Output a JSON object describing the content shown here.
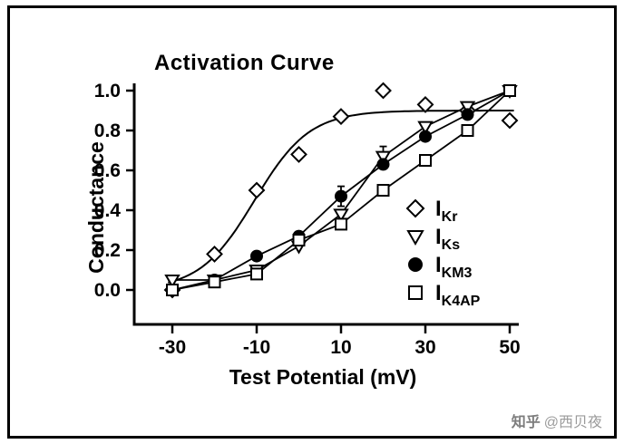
{
  "figure": {
    "watermark_brand": "知乎",
    "watermark_user": "@西贝夜"
  },
  "chart_data": {
    "type": "scatter",
    "title": "Activation Curve",
    "xlabel": "Test Potential (mV)",
    "ylabel": "Conductance",
    "xlim": [
      -30,
      50
    ],
    "ylim": [
      0.0,
      1.0
    ],
    "xticks": [
      -30,
      -10,
      10,
      30,
      50
    ],
    "yticks": [
      0.0,
      0.2,
      0.4,
      0.6,
      0.8,
      1.0
    ],
    "grid": false,
    "legend_position": "inside-right",
    "x": [
      -30,
      -20,
      -10,
      0,
      10,
      20,
      30,
      40,
      50
    ],
    "series": [
      {
        "id": "IKr",
        "label_base": "I",
        "label_sub": "Kr",
        "marker": "diamond",
        "fill": "open",
        "line": "fit",
        "values": [
          0.0,
          0.18,
          0.5,
          0.68,
          0.87,
          1.0,
          0.93,
          0.9,
          0.85
        ],
        "errors": [
          0,
          0,
          0,
          0,
          0,
          0,
          0,
          0,
          0
        ]
      },
      {
        "id": "IKs",
        "label_base": "I",
        "label_sub": "Ks",
        "marker": "triangle-down",
        "fill": "open",
        "line": "segments",
        "values": [
          0.05,
          0.05,
          0.1,
          0.22,
          0.38,
          0.67,
          0.82,
          0.92,
          1.0
        ],
        "errors": [
          0,
          0,
          0,
          0,
          0,
          0.05,
          0,
          0,
          0
        ]
      },
      {
        "id": "IKM3",
        "label_base": "I",
        "label_sub": "KM3",
        "marker": "circle",
        "fill": "solid",
        "line": "segments",
        "values": [
          0.0,
          0.05,
          0.17,
          0.27,
          0.47,
          0.63,
          0.77,
          0.88,
          1.0
        ],
        "errors": [
          0,
          0,
          0,
          0,
          0.05,
          0,
          0,
          0,
          0
        ]
      },
      {
        "id": "IK4AP",
        "label_base": "I",
        "label_sub": "K4AP",
        "marker": "square",
        "fill": "open",
        "line": "segments",
        "values": [
          0.0,
          0.04,
          0.08,
          0.25,
          0.33,
          0.5,
          0.65,
          0.8,
          1.0
        ],
        "errors": [
          0,
          0,
          0,
          0,
          0,
          0,
          0,
          0,
          0
        ]
      }
    ],
    "fit_curve": {
      "series": "IKr",
      "model": "boltzmann",
      "gmax": 0.9,
      "vhalf": -10.5,
      "k": 6.5
    },
    "colors": {
      "foreground": "#000000",
      "background": "#ffffff"
    }
  }
}
